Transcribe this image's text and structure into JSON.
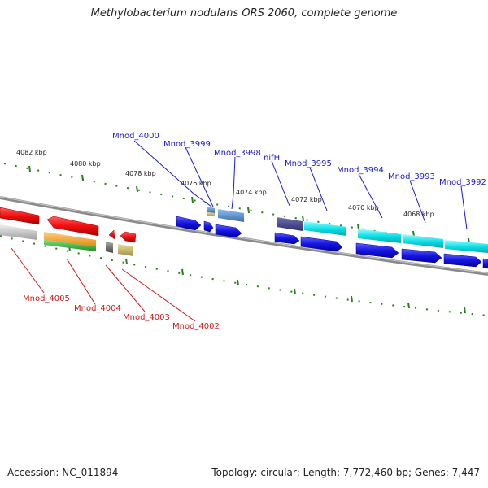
{
  "title": "Methylobacterium nodulans ORS 2060, complete genome",
  "footer": {
    "accession": "Accession: NC_011894",
    "summary": "Topology: circular; Length: 7,772,460 bp; Genes: 7,447"
  },
  "scale_labels": [
    "4082 kbp",
    "4080 kbp",
    "4078 kbp",
    "4076 kbp",
    "4074 kbp",
    "4072 kbp",
    "4070 kbp",
    "4068 kbp"
  ],
  "gene_labels_top": [
    "Mnod_4000",
    "Mnod_3999",
    "Mnod_3998",
    "nifH",
    "Mnod_3995",
    "Mnod_3994",
    "Mnod_3993",
    "Mnod_3992"
  ],
  "gene_labels_bottom": [
    "Mnod_4005",
    "Mnod_4004",
    "Mnod_4003",
    "Mnod_4002"
  ],
  "colors": {
    "label_top": "#1a1acc",
    "label_bottom": "#cc1a1a",
    "gene_forward": "#1515e0",
    "gene_reverse": "#e01010",
    "cog_cyan": "#10e0e8",
    "cog_orange": "#f0a020",
    "cog_green": "#30b030",
    "cog_grey": "#bdbdbd",
    "cog_navy": "#404090",
    "cog_steel": "#5a8ec4",
    "cog_olive": "#b8b060",
    "backbone": "#888888",
    "tick": "#2e7d1e"
  }
}
